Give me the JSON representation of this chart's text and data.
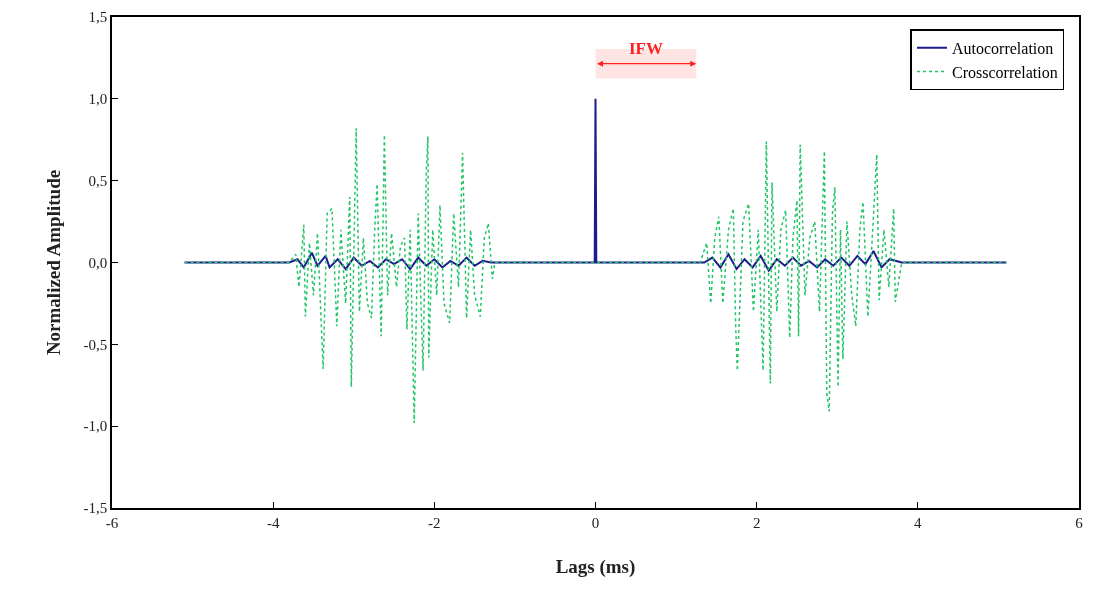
{
  "chart_data": {
    "type": "line",
    "xlabel": "Lags (ms)",
    "ylabel": "Normalized Amplitude",
    "xlim": [
      -6,
      6
    ],
    "xticks": [
      -6,
      -4,
      -2,
      0,
      2,
      4,
      6
    ],
    "ylim": [
      -1.5,
      1.5
    ],
    "yticks": [
      {
        "value": -1.5,
        "label": "-1,5"
      },
      {
        "value": -1,
        "label": "-1,0"
      },
      {
        "value": -0.5,
        "label": "-0,5"
      },
      {
        "value": 0,
        "label": "0,0"
      },
      {
        "value": 0.5,
        "label": "0,5"
      },
      {
        "value": 1,
        "label": "1,0"
      },
      {
        "value": 1.5,
        "label": "1,5"
      }
    ],
    "grid": false,
    "legend": "top right",
    "marker": "none",
    "bands": [
      {
        "axis": "x",
        "from": 0,
        "to": 1.25,
        "label": "IFW",
        "color": "#ff2020"
      }
    ],
    "series": [
      {
        "name": "Autocorrelation",
        "color": "#1c1c8c",
        "line_style": "solid",
        "x": [
          -5.1,
          -3.8,
          -3.7,
          -3.62,
          -3.52,
          -3.45,
          -3.35,
          -3.3,
          -3.2,
          -3.1,
          -3.0,
          -2.9,
          -2.8,
          -2.7,
          -2.6,
          -2.5,
          -2.4,
          -2.3,
          -2.2,
          -2.1,
          -2.0,
          -1.9,
          -1.8,
          -1.7,
          -1.6,
          -1.5,
          -1.4,
          -1.3,
          -0.01,
          0,
          0.01,
          1.35,
          1.45,
          1.55,
          1.65,
          1.75,
          1.85,
          1.95,
          2.05,
          2.15,
          2.25,
          2.35,
          2.45,
          2.55,
          2.65,
          2.75,
          2.85,
          2.95,
          3.05,
          3.15,
          3.25,
          3.35,
          3.45,
          3.55,
          3.65,
          3.8,
          5.1
        ],
        "values": [
          0,
          0,
          0.02,
          -0.03,
          0.06,
          -0.02,
          0.04,
          -0.03,
          0.02,
          -0.04,
          0.03,
          -0.02,
          0.01,
          -0.03,
          0.02,
          -0.01,
          0.02,
          -0.04,
          0.03,
          -0.02,
          0.02,
          -0.03,
          0.01,
          -0.02,
          0.03,
          -0.02,
          0.01,
          0,
          0,
          1.0,
          0,
          0,
          0.03,
          -0.03,
          0.05,
          -0.04,
          0.02,
          -0.03,
          0.04,
          -0.05,
          0.02,
          -0.02,
          0.03,
          -0.02,
          0.01,
          -0.03,
          0.02,
          -0.02,
          0.03,
          -0.02,
          0.04,
          -0.01,
          0.07,
          -0.03,
          0.02,
          0,
          0
        ]
      },
      {
        "name": "Crosscorrelation",
        "color": "#22c466",
        "line_style": "dotted",
        "x": [
          -5.1,
          -3.8,
          -3.72,
          -3.68,
          -3.62,
          -3.6,
          -3.55,
          -3.5,
          -3.45,
          -3.38,
          -3.33,
          -3.27,
          -3.21,
          -3.16,
          -3.1,
          -3.05,
          -3.03,
          -2.97,
          -2.93,
          -2.88,
          -2.83,
          -2.78,
          -2.74,
          -2.71,
          -2.66,
          -2.62,
          -2.58,
          -2.53,
          -2.47,
          -2.42,
          -2.37,
          -2.34,
          -2.3,
          -2.25,
          -2.2,
          -2.14,
          -2.1,
          -2.08,
          -2.07,
          -2.02,
          -1.97,
          -1.93,
          -1.88,
          -1.81,
          -1.76,
          -1.7,
          -1.65,
          -1.6,
          -1.55,
          -1.5,
          -1.43,
          -1.38,
          -1.33,
          -1.28,
          -1.25,
          1.3,
          1.38,
          1.43,
          1.48,
          1.53,
          1.58,
          1.65,
          1.71,
          1.74,
          1.76,
          1.83,
          1.9,
          1.96,
          2.02,
          2.08,
          2.12,
          2.17,
          2.19,
          2.25,
          2.3,
          2.36,
          2.41,
          2.45,
          2.5,
          2.52,
          2.54,
          2.6,
          2.66,
          2.72,
          2.78,
          2.84,
          2.87,
          2.9,
          2.94,
          2.97,
          3.01,
          3.04,
          3.07,
          3.12,
          3.18,
          3.23,
          3.28,
          3.32,
          3.38,
          3.44,
          3.49,
          3.52,
          3.58,
          3.64,
          3.7,
          3.72,
          3.8,
          5.1
        ],
        "values": [
          0,
          0,
          0.05,
          -0.15,
          0.23,
          -0.33,
          0.12,
          -0.2,
          0.18,
          -0.65,
          0.3,
          0.33,
          -0.39,
          0.2,
          -0.25,
          0.4,
          -0.76,
          0.82,
          -0.3,
          0.15,
          -0.25,
          -0.34,
          0.2,
          0.48,
          -0.45,
          0.78,
          -0.2,
          0.18,
          -0.15,
          0.1,
          0.15,
          -0.41,
          0.2,
          -0.98,
          0.3,
          -0.66,
          0.55,
          0.77,
          -0.58,
          0.2,
          -0.2,
          0.35,
          -0.25,
          -0.37,
          0.3,
          -0.15,
          0.67,
          -0.34,
          0.2,
          -0.2,
          -0.33,
          0.15,
          0.24,
          -0.1,
          0,
          0,
          0.12,
          -0.25,
          0.15,
          0.28,
          -0.25,
          0.2,
          0.33,
          -0.4,
          -0.66,
          0.25,
          0.36,
          -0.3,
          0.2,
          -0.66,
          0.74,
          -0.74,
          0.49,
          -0.3,
          0.2,
          0.32,
          -0.46,
          0.15,
          0.38,
          -0.45,
          0.72,
          -0.2,
          0.15,
          0.25,
          -0.3,
          0.68,
          -0.8,
          -0.91,
          0.3,
          0.46,
          -0.76,
          0.2,
          -0.59,
          0.25,
          -0.2,
          -0.39,
          0.2,
          0.37,
          -0.33,
          0.2,
          0.66,
          -0.23,
          0.2,
          -0.15,
          0.33,
          -0.24,
          0,
          0
        ]
      }
    ]
  }
}
